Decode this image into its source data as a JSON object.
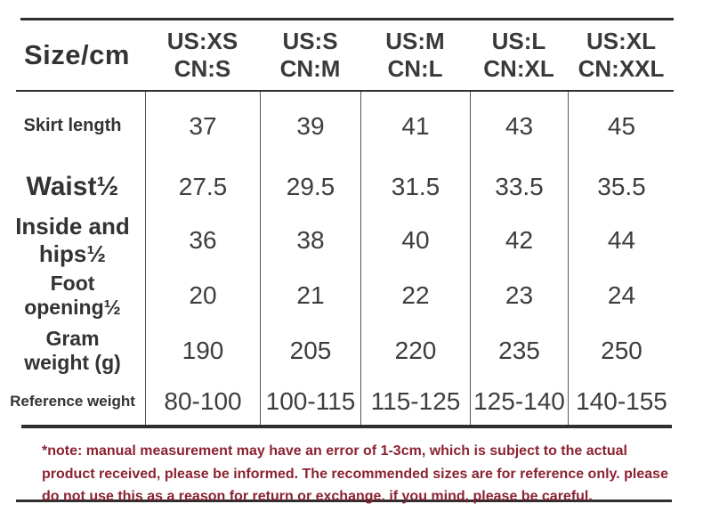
{
  "colors": {
    "text": "#333333",
    "note_red": "#8b2332",
    "line_dark": "#2e2e2e",
    "divider_gray": "#555555",
    "background": "#ffffff"
  },
  "table": {
    "corner_label": "Size/cm",
    "columns": [
      {
        "us": "US:XS",
        "cn": "CN:S"
      },
      {
        "us": "US:S",
        "cn": "CN:M"
      },
      {
        "us": "US:M",
        "cn": "CN:L"
      },
      {
        "us": "US:L",
        "cn": "CN:XL"
      },
      {
        "us": "US:XL",
        "cn": "CN:XXL"
      }
    ],
    "rows": [
      {
        "label": "Skirt length",
        "values": [
          "37",
          "39",
          "41",
          "43",
          "45"
        ]
      },
      {
        "label": "Waist½",
        "values": [
          "27.5",
          "29.5",
          "31.5",
          "33.5",
          "35.5"
        ]
      },
      {
        "label": "Inside and\nhips½",
        "values": [
          "36",
          "38",
          "40",
          "42",
          "44"
        ]
      },
      {
        "label": "Foot\nopening½",
        "values": [
          "20",
          "21",
          "22",
          "23",
          "24"
        ]
      },
      {
        "label": "Gram\nweight (g)",
        "values": [
          "190",
          "205",
          "220",
          "235",
          "250"
        ]
      },
      {
        "label": "Reference weight",
        "values": [
          "80-100",
          "100-115",
          "115-125",
          "125-140",
          "140-155"
        ]
      }
    ]
  },
  "note": {
    "text": "*note: manual measurement may have an error of 1-3cm, which is subject to the actual\nproduct received, please be informed.   The recommended sizes are for reference only. please\ndo not use this as a reason for return or exchange. if you mind, please be careful."
  }
}
